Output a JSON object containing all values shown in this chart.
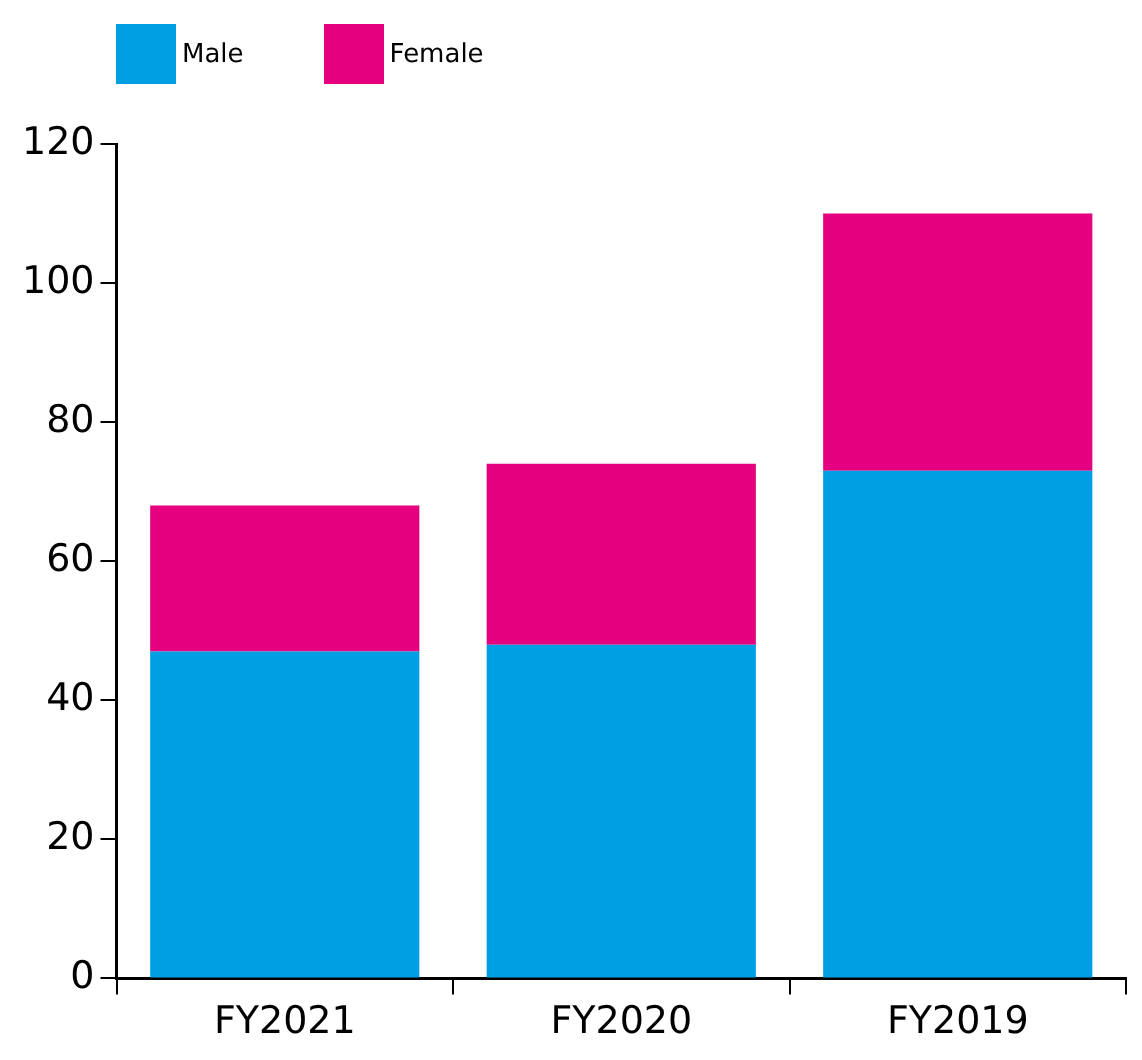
{
  "chart_data": {
    "type": "bar",
    "stacked": true,
    "categories": [
      "FY2021",
      "FY2020",
      "FY2019"
    ],
    "series": [
      {
        "name": "Male",
        "color": "#009fe3",
        "values": [
          47,
          48,
          73
        ]
      },
      {
        "name": "Female",
        "color": "#e4007f",
        "values": [
          21,
          26,
          37
        ]
      }
    ],
    "ylim": [
      0,
      120
    ],
    "yticks": [
      0,
      20,
      40,
      60,
      80,
      100,
      120
    ],
    "grid": false,
    "legend": "top left"
  }
}
